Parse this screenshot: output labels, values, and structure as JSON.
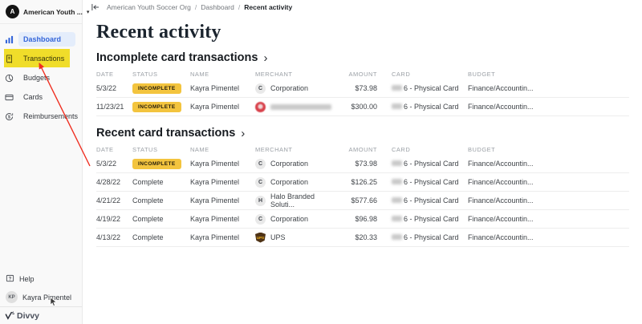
{
  "sidebar": {
    "org": {
      "initial": "A",
      "name": "American Youth ...",
      "caret": "▾"
    },
    "nav": [
      {
        "id": "dashboard",
        "label": "Dashboard",
        "active": true
      },
      {
        "id": "transactions",
        "label": "Transactions",
        "annotated": true
      },
      {
        "id": "budgets",
        "label": "Budgets"
      },
      {
        "id": "cards",
        "label": "Cards"
      },
      {
        "id": "reimbursements",
        "label": "Reimbursements"
      }
    ],
    "help_label": "Help",
    "user": {
      "initials": "KP",
      "name": "Kayra Pimentel"
    },
    "brand": "Divvy"
  },
  "breadcrumb": {
    "items": [
      "American Youth Soccer Org",
      "Dashboard",
      "Recent activity"
    ],
    "separator": "/"
  },
  "page": {
    "title": "Recent activity"
  },
  "tables": [
    {
      "title": "Incomplete card transactions",
      "chevron": "›",
      "columns": [
        "DATE",
        "STATUS",
        "NAME",
        "MERCHANT",
        "AMOUNT",
        "CARD",
        "BUDGET"
      ],
      "rows": [
        {
          "date": "5/3/22",
          "status": {
            "label": "INCOMPLETE",
            "badge": true
          },
          "name": "Kayra Pimentel",
          "merchant": {
            "type": "letter",
            "initial": "C",
            "label": "Corporation"
          },
          "amount": "$73.98",
          "card": {
            "masked_prefix": true,
            "text": "6 - Physical Card"
          },
          "budget": "Finance/Accountin..."
        },
        {
          "date": "11/23/21",
          "status": {
            "label": "INCOMPLETE",
            "badge": true
          },
          "name": "Kayra Pimentel",
          "merchant": {
            "type": "masked-logo",
            "label": "",
            "masked": true
          },
          "amount": "$300.00",
          "card": {
            "masked_prefix": true,
            "text": "6 - Physical Card"
          },
          "budget": "Finance/Accountin..."
        }
      ]
    },
    {
      "title": "Recent card transactions",
      "chevron": "›",
      "columns": [
        "DATE",
        "STATUS",
        "NAME",
        "MERCHANT",
        "AMOUNT",
        "CARD",
        "BUDGET"
      ],
      "rows": [
        {
          "date": "5/3/22",
          "status": {
            "label": "INCOMPLETE",
            "badge": true
          },
          "name": "Kayra Pimentel",
          "merchant": {
            "type": "letter",
            "initial": "C",
            "label": "Corporation"
          },
          "amount": "$73.98",
          "card": {
            "masked_prefix": true,
            "text": "6 - Physical Card"
          },
          "budget": "Finance/Accountin..."
        },
        {
          "date": "4/28/22",
          "status": {
            "label": "Complete",
            "badge": false
          },
          "name": "Kayra Pimentel",
          "merchant": {
            "type": "letter",
            "initial": "C",
            "label": "Corporation"
          },
          "amount": "$126.25",
          "card": {
            "masked_prefix": true,
            "text": "6 - Physical Card"
          },
          "budget": "Finance/Accountin..."
        },
        {
          "date": "4/21/22",
          "status": {
            "label": "Complete",
            "badge": false
          },
          "name": "Kayra Pimentel",
          "merchant": {
            "type": "letter",
            "initial": "H",
            "label": "Halo Branded Soluti..."
          },
          "amount": "$577.66",
          "card": {
            "masked_prefix": true,
            "text": "6 - Physical Card"
          },
          "budget": "Finance/Accountin..."
        },
        {
          "date": "4/19/22",
          "status": {
            "label": "Complete",
            "badge": false
          },
          "name": "Kayra Pimentel",
          "merchant": {
            "type": "letter",
            "initial": "C",
            "label": "Corporation"
          },
          "amount": "$96.98",
          "card": {
            "masked_prefix": true,
            "text": "6 - Physical Card"
          },
          "budget": "Finance/Accountin..."
        },
        {
          "date": "4/13/22",
          "status": {
            "label": "Complete",
            "badge": false
          },
          "name": "Kayra Pimentel",
          "merchant": {
            "type": "ups",
            "initial": "UPS",
            "label": "UPS"
          },
          "amount": "$20.33",
          "card": {
            "masked_prefix": true,
            "text": "6 - Physical Card"
          },
          "budget": "Finance/Accountin..."
        }
      ]
    }
  ],
  "annotation": {
    "highlight_color": "#f6e32b",
    "arrow_color": "#ef2e20"
  },
  "colors": {
    "accent_blue": "#3465d9",
    "badge_yellow": "#f3c43e"
  }
}
